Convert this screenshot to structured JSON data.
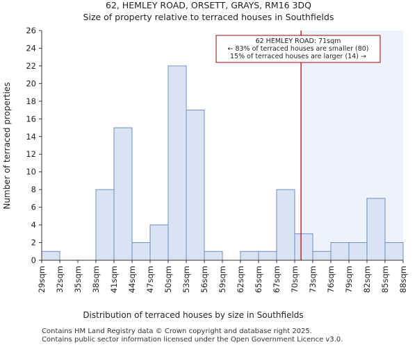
{
  "chart_data": {
    "type": "bar",
    "title_line1": "62, HEMLEY ROAD, ORSETT, GRAYS, RM16 3DQ",
    "title_line2": "Size of property relative to terraced houses in Southfields",
    "xlabel": "Distribution of terraced houses by size in Southfields",
    "ylabel": "Number of terraced properties",
    "ylim": [
      0,
      26
    ],
    "yticks": [
      0,
      2,
      4,
      6,
      8,
      10,
      12,
      14,
      16,
      18,
      20,
      22,
      24,
      26
    ],
    "bin_edges": [
      "29sqm",
      "32sqm",
      "35sqm",
      "38sqm",
      "41sqm",
      "44sqm",
      "47sqm",
      "50sqm",
      "53sqm",
      "56sqm",
      "59sqm",
      "62sqm",
      "65sqm",
      "67sqm",
      "70sqm",
      "73sqm",
      "76sqm",
      "79sqm",
      "82sqm",
      "85sqm",
      "88sqm"
    ],
    "values": [
      1,
      0,
      0,
      8,
      15,
      2,
      4,
      22,
      17,
      1,
      0,
      1,
      1,
      8,
      3,
      1,
      2,
      2,
      7,
      2
    ],
    "marker": {
      "label": "62 HEMLEY ROAD: 71sqm",
      "bin_position": 14.35,
      "color": "#990000"
    },
    "annotation": {
      "line1": "62 HEMLEY ROAD: 71sqm",
      "line2": "← 83% of terraced houses are smaller (80)",
      "line3": "15% of terraced houses are larger (14) →"
    },
    "colors": {
      "bar_fill": "#dae3f3",
      "bar_stroke": "#6d8ebf",
      "highlight_fill": "#eef2fa"
    }
  },
  "footer": {
    "line1": "Contains HM Land Registry data © Crown copyright and database right 2025.",
    "line2": "Contains public sector information licensed under the Open Government Licence v3.0."
  }
}
